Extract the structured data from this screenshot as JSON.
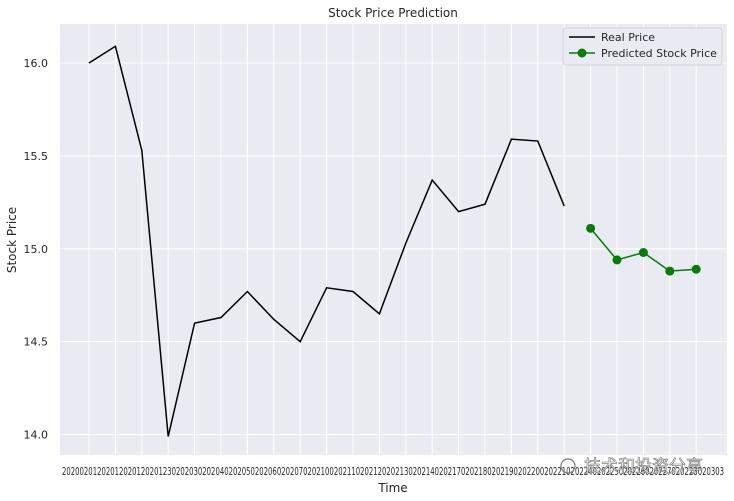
{
  "chart_data": {
    "type": "line",
    "title": "Stock Price Prediction",
    "xlabel": "Time",
    "ylabel": "Stock Price",
    "ylim": [
      13.89,
      16.21
    ],
    "yticks": [
      "14.0",
      "14.5",
      "15.0",
      "15.5",
      "16.0"
    ],
    "grid": true,
    "legend_position": "top-right",
    "x_tick_labels_overlapping": "2020020120201202012020123020203020204020205020206020207020210020211020212020213020214020217020218020219020220020221020224020225020226020227020228020303",
    "series": [
      {
        "name": "Real Price",
        "color": "#000000",
        "marker": "none",
        "values": [
          16.0,
          16.09,
          15.53,
          13.99,
          14.6,
          14.63,
          14.77,
          14.62,
          14.5,
          14.79,
          14.77,
          14.65,
          15.03,
          15.37,
          15.2,
          15.24,
          15.59,
          15.58,
          15.23
        ]
      },
      {
        "name": "Predicted Stock Price",
        "color": "#008000",
        "marker": "circle",
        "start_index": 19,
        "values": [
          15.11,
          14.94,
          14.98,
          14.88,
          14.89
        ]
      }
    ]
  },
  "watermark": "技术和投资分享"
}
